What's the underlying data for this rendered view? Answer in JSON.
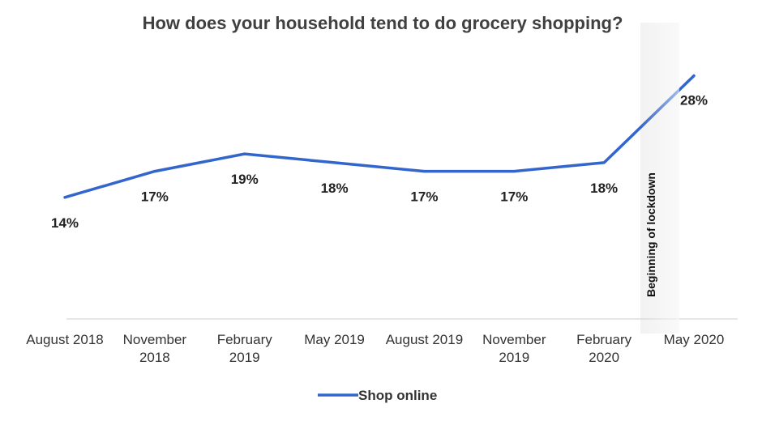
{
  "chart_data": {
    "type": "line",
    "title": "How does your household tend to do grocery shopping?",
    "categories": [
      "August 2018",
      "November 2018",
      "February 2019",
      "May 2019",
      "August 2019",
      "November 2019",
      "February 2020",
      "May 2020"
    ],
    "series": [
      {
        "name": "Shop online",
        "values": [
          14,
          17,
          19,
          18,
          17,
          17,
          18,
          28
        ],
        "data_labels": [
          "14%",
          "17%",
          "19%",
          "18%",
          "17%",
          "17%",
          "18%",
          "28%"
        ],
        "color": "#3366cc"
      }
    ],
    "annotation": {
      "label": "Beginning of lockdown",
      "between": [
        "February 2020",
        "May 2020"
      ],
      "band_color": "#f2f2f2"
    },
    "ylim": [
      0,
      32
    ],
    "grid": false,
    "legend_position": "bottom",
    "axis_color": "#cccccc",
    "xlabel": "",
    "ylabel": ""
  }
}
